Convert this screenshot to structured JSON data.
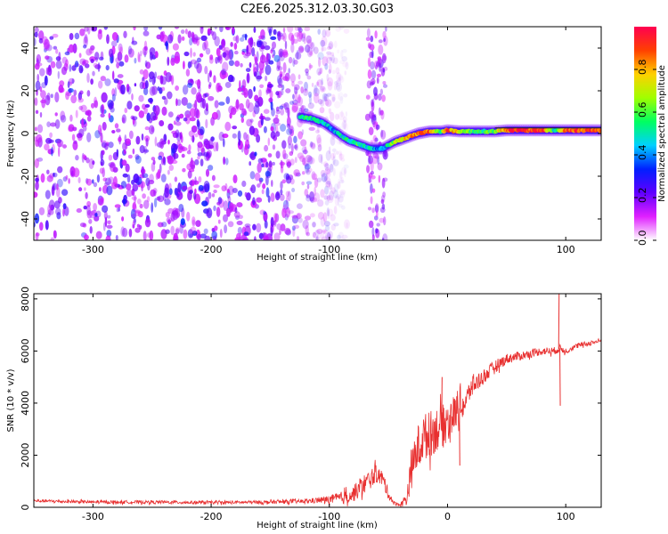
{
  "title": "C2E6.2025.312.03.30.G03",
  "chart_data": [
    {
      "type": "heatmap",
      "name": "spectrogram",
      "xlabel": "Height of straight line (km)",
      "ylabel": "Frequency (Hz)",
      "xlim": [
        -350,
        130
      ],
      "ylim": [
        -50,
        50
      ],
      "xticks": [
        -300,
        -200,
        -100,
        0,
        100
      ],
      "yticks": [
        -40,
        -20,
        0,
        20,
        40
      ],
      "colorbar": {
        "label": "Normalized spectral amplitude",
        "range": [
          0,
          1
        ],
        "ticks": [
          "0.0",
          "0.2",
          "0.4",
          "0.6",
          "0.8"
        ],
        "colors": [
          "#ffffff",
          "#e020ff",
          "#6000ff",
          "#0020ff",
          "#00d0ff",
          "#00ff60",
          "#a0ff00",
          "#ffd000",
          "#ff4000",
          "#ff0050"
        ]
      },
      "noise_region_km": [
        -350,
        -110
      ],
      "gap_km": [
        -100,
        -68
      ],
      "noise_band_km": [
        -68,
        -52
      ],
      "signal_track": [
        {
          "x": -125,
          "f": 8,
          "a": 0.55
        },
        {
          "x": -115,
          "f": 7,
          "a": 0.5
        },
        {
          "x": -105,
          "f": 5,
          "a": 0.45
        },
        {
          "x": -95,
          "f": 1,
          "a": 0.45
        },
        {
          "x": -85,
          "f": -3,
          "a": 0.5
        },
        {
          "x": -75,
          "f": -5,
          "a": 0.55
        },
        {
          "x": -65,
          "f": -7,
          "a": 0.45
        },
        {
          "x": -55,
          "f": -7,
          "a": 0.4
        },
        {
          "x": -45,
          "f": -4,
          "a": 0.65
        },
        {
          "x": -35,
          "f": -2,
          "a": 0.8
        },
        {
          "x": -25,
          "f": 0,
          "a": 0.85
        },
        {
          "x": -15,
          "f": 1,
          "a": 0.85
        },
        {
          "x": -5,
          "f": 1,
          "a": 0.6
        },
        {
          "x": 0,
          "f": 1.5,
          "a": 0.9
        },
        {
          "x": 10,
          "f": 1,
          "a": 0.7
        },
        {
          "x": 20,
          "f": 1,
          "a": 0.6
        },
        {
          "x": 30,
          "f": 1,
          "a": 0.55
        },
        {
          "x": 40,
          "f": 1,
          "a": 0.6
        },
        {
          "x": 50,
          "f": 1.5,
          "a": 0.9
        },
        {
          "x": 60,
          "f": 1.5,
          "a": 0.95
        },
        {
          "x": 70,
          "f": 1.5,
          "a": 0.9
        },
        {
          "x": 80,
          "f": 1.5,
          "a": 0.95
        },
        {
          "x": 90,
          "f": 1.5,
          "a": 0.5
        },
        {
          "x": 100,
          "f": 1.5,
          "a": 0.9
        },
        {
          "x": 110,
          "f": 1.5,
          "a": 0.9
        },
        {
          "x": 120,
          "f": 1.5,
          "a": 0.9
        },
        {
          "x": 130,
          "f": 1.5,
          "a": 0.9
        }
      ]
    },
    {
      "type": "line",
      "name": "snr",
      "xlabel": "Height of straight line (km)",
      "ylabel": "SNR (10 * v/v)",
      "xlim": [
        -350,
        130
      ],
      "ylim": [
        0,
        8200
      ],
      "xticks": [
        -300,
        -200,
        -100,
        0,
        100
      ],
      "yticks": [
        0,
        2000,
        4000,
        6000,
        8000
      ],
      "color": "#e83030",
      "x": [
        -350,
        -300,
        -250,
        -200,
        -150,
        -120,
        -100,
        -90,
        -80,
        -70,
        -60,
        -55,
        -50,
        -45,
        -40,
        -35,
        -30,
        -25,
        -20,
        -15,
        -10,
        -5,
        0,
        5,
        10,
        15,
        20,
        30,
        40,
        50,
        60,
        70,
        80,
        90,
        95,
        100,
        110,
        120,
        130
      ],
      "y": [
        250,
        200,
        200,
        180,
        200,
        230,
        300,
        350,
        500,
        900,
        1300,
        1100,
        500,
        150,
        100,
        300,
        1500,
        2300,
        2700,
        2800,
        3000,
        3100,
        3300,
        3600,
        3800,
        4000,
        4600,
        5000,
        5400,
        5700,
        5800,
        5900,
        6000,
        6000,
        6100,
        6000,
        6200,
        6300,
        6400
      ],
      "noise_amp": [
        60,
        60,
        60,
        60,
        70,
        80,
        150,
        250,
        300,
        400,
        350,
        300,
        200,
        80,
        60,
        300,
        700,
        900,
        900,
        900,
        900,
        800,
        800,
        700,
        600,
        500,
        400,
        300,
        250,
        200,
        180,
        150,
        150,
        150,
        150,
        120,
        100,
        100,
        100
      ],
      "spikes": [
        {
          "x": 94,
          "y": 8200
        },
        {
          "x": 95,
          "y": 3900
        },
        {
          "x": 10,
          "y": 1600
        },
        {
          "x": -5,
          "y": 5000
        }
      ]
    }
  ]
}
